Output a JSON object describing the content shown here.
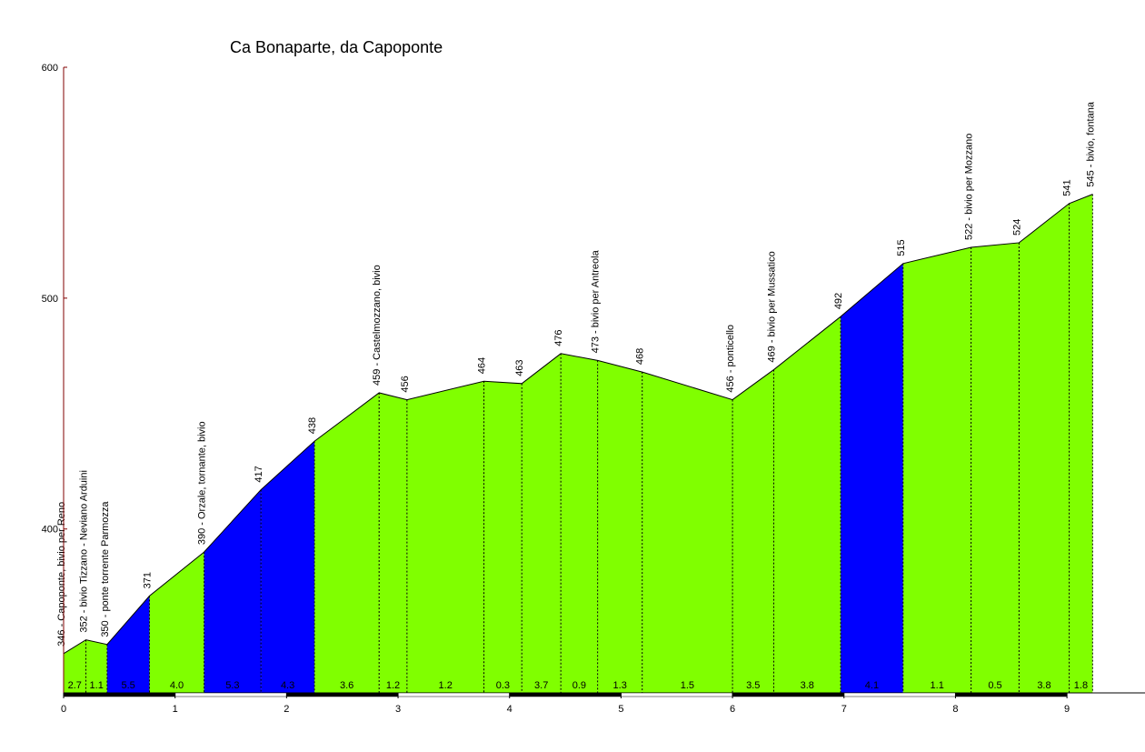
{
  "chart_data": {
    "type": "area",
    "title": "Ca Bonaparte, da Capoponte",
    "x": [
      0,
      0.2,
      0.39,
      0.77,
      1.26,
      1.77,
      2.25,
      2.83,
      3.08,
      3.77,
      4.11,
      4.46,
      4.79,
      5.19,
      6.0,
      6.37,
      6.97,
      7.53,
      8.14,
      8.57,
      9.02,
      9.23
    ],
    "values": [
      346,
      352,
      350,
      371,
      390,
      417,
      438,
      459,
      456,
      464,
      463,
      476,
      473,
      468,
      456,
      469,
      492,
      515,
      522,
      524,
      541,
      545
    ],
    "value_labels": [
      "346 - Capoponte, bivio per Reno",
      "352 - bivio Tizzano - Neviano Arduini",
      "350 - ponte torrente Parmozza",
      "371",
      "390 - Orzale, tornante, bivio",
      "417",
      "438",
      "459 - Castelmozzano, bivio",
      "456",
      "464",
      "463",
      "476",
      "473 - bivio per Antreola",
      "468",
      "456 - ponticello",
      "469 - bivio per Mussatico",
      "492",
      "515",
      "522 - bivio per Mozzano",
      "524",
      "541",
      "545 - bivio, fontana"
    ],
    "gradients": [
      2.7,
      1.1,
      5.5,
      4.0,
      5.3,
      4.3,
      3.6,
      1.2,
      1.2,
      0.3,
      3.7,
      0.9,
      1.3,
      1.5,
      3.5,
      3.8,
      4.1,
      1.1,
      0.5,
      3.8,
      1.8
    ],
    "gradient_labels": [
      "2.7",
      "1.1",
      "5.5",
      "4.0",
      "5.3",
      "4.3",
      "3.6",
      "1.2",
      "1.2",
      "0.3",
      "3.7",
      "0.9",
      "1.3",
      "1.5",
      "3.5",
      "3.8",
      "4.1",
      "1.1",
      "0.5",
      "3.8",
      "1.8"
    ],
    "segment_colors": [
      "#80ff00",
      "#80ff00",
      "#0000ff",
      "#80ff00",
      "#0000ff",
      "#0000ff",
      "#80ff00",
      "#80ff00",
      "#80ff00",
      "#80ff00",
      "#80ff00",
      "#80ff00",
      "#80ff00",
      "#80ff00",
      "#80ff00",
      "#80ff00",
      "#0000ff",
      "#80ff00",
      "#80ff00",
      "#80ff00",
      "#80ff00"
    ],
    "xlim": [
      0,
      9.7
    ],
    "xticks": [
      0,
      1,
      2,
      3,
      4,
      5,
      6,
      7,
      8,
      9
    ],
    "ylim": [
      329,
      600
    ],
    "yticks": [
      400,
      500,
      600
    ]
  }
}
